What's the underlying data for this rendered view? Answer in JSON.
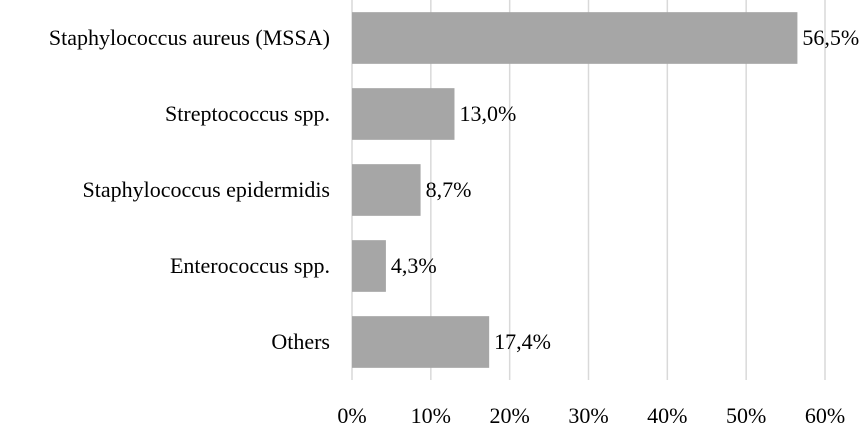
{
  "chart_data": {
    "type": "hbar",
    "categories": [
      "Staphylococcus aureus (MSSA)",
      "Streptococcus spp.",
      "Staphylococcus epidermidis",
      "Enterococcus spp.",
      "Others"
    ],
    "values": [
      56.5,
      13.0,
      8.7,
      4.3,
      17.4
    ],
    "value_labels": [
      "56,5%",
      "13,0%",
      "8,7%",
      "4,3%",
      "17,4%"
    ],
    "color": "#a6a6a6",
    "xlim": [
      0,
      60
    ],
    "xticks": [
      {
        "value": 0,
        "label": "0%"
      },
      {
        "value": 10,
        "label": "10%"
      },
      {
        "value": 20,
        "label": "20%"
      },
      {
        "value": 30,
        "label": "30%"
      },
      {
        "value": 40,
        "label": "40%"
      },
      {
        "value": 50,
        "label": "50%"
      },
      {
        "value": 60,
        "label": "60%"
      }
    ],
    "grid": true
  }
}
